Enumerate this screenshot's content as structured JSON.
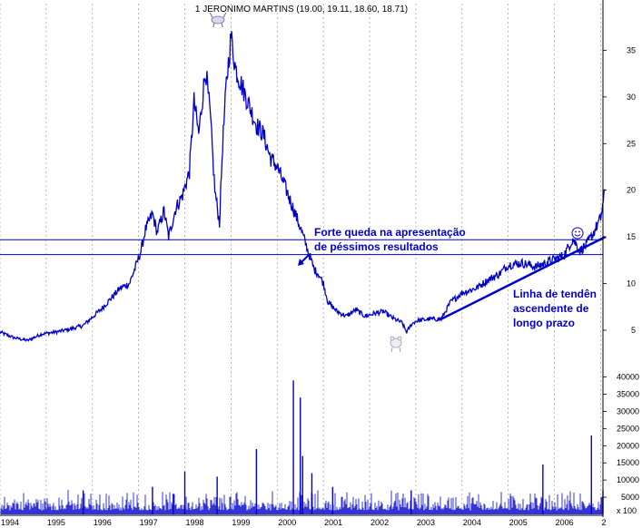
{
  "chart_data": {
    "type": "line",
    "title": "1 JERONIMO MARTINS (19.00, 19.11, 18.60, 18.71)",
    "colors": {
      "series": "#0000cc",
      "grid": "#9a9a9a",
      "background": "#ffffff"
    },
    "price_panel": {
      "y_ticks": [
        5,
        10,
        15,
        20,
        25,
        30,
        35
      ],
      "ylim": [
        1.5,
        40
      ],
      "series": [
        {
          "values": [
            [
              1994.0,
              4.8
            ],
            [
              1994.3,
              4.2
            ],
            [
              1994.6,
              3.9
            ],
            [
              1994.9,
              4.6
            ],
            [
              1995.2,
              4.8
            ],
            [
              1995.5,
              5.1
            ],
            [
              1995.8,
              5.5
            ],
            [
              1996.0,
              6.4
            ],
            [
              1996.2,
              7.3
            ],
            [
              1996.4,
              8.4
            ],
            [
              1996.6,
              9.5
            ],
            [
              1996.8,
              10.0
            ],
            [
              1996.95,
              12.0
            ],
            [
              1997.05,
              13.5
            ],
            [
              1997.15,
              15.8
            ],
            [
              1997.3,
              17.5
            ],
            [
              1997.4,
              15.5
            ],
            [
              1997.55,
              17.8
            ],
            [
              1997.65,
              15.0
            ],
            [
              1997.8,
              18.0
            ],
            [
              1997.95,
              19.5
            ],
            [
              1998.1,
              22.0
            ],
            [
              1998.2,
              29.5
            ],
            [
              1998.3,
              26.0
            ],
            [
              1998.45,
              33.0
            ],
            [
              1998.55,
              28.0
            ],
            [
              1998.65,
              20.0
            ],
            [
              1998.75,
              16.5
            ],
            [
              1998.82,
              25.0
            ],
            [
              1998.9,
              31.5
            ],
            [
              1999.0,
              36.5
            ],
            [
              1999.1,
              33.0
            ],
            [
              1999.25,
              31.0
            ],
            [
              1999.4,
              29.0
            ],
            [
              1999.55,
              27.0
            ],
            [
              1999.7,
              26.0
            ],
            [
              1999.85,
              23.5
            ],
            [
              2000.0,
              22.5
            ],
            [
              2000.2,
              20.0
            ],
            [
              2000.35,
              18.0
            ],
            [
              2000.5,
              16.0
            ],
            [
              2000.6,
              14.5
            ],
            [
              2000.7,
              13.0
            ],
            [
              2000.8,
              11.5
            ],
            [
              2000.9,
              11.0
            ],
            [
              2001.0,
              10.0
            ],
            [
              2001.1,
              8.0
            ],
            [
              2001.3,
              7.0
            ],
            [
              2001.5,
              6.5
            ],
            [
              2001.7,
              7.2
            ],
            [
              2001.9,
              6.5
            ],
            [
              2002.1,
              6.8
            ],
            [
              2002.3,
              7.0
            ],
            [
              2002.5,
              6.3
            ],
            [
              2002.7,
              5.8
            ],
            [
              2002.8,
              4.8
            ],
            [
              2002.9,
              5.6
            ],
            [
              2003.0,
              6.0
            ],
            [
              2003.3,
              6.2
            ],
            [
              2003.55,
              6.2
            ],
            [
              2003.75,
              8.0
            ],
            [
              2004.0,
              9.0
            ],
            [
              2004.3,
              9.5
            ],
            [
              2004.6,
              10.5
            ],
            [
              2004.8,
              11.0
            ],
            [
              2005.0,
              12.0
            ],
            [
              2005.3,
              12.2
            ],
            [
              2005.6,
              11.8
            ],
            [
              2005.9,
              12.4
            ],
            [
              2006.2,
              13.0
            ],
            [
              2006.4,
              14.8
            ],
            [
              2006.55,
              13.5
            ],
            [
              2006.7,
              14.2
            ],
            [
              2006.85,
              15.5
            ],
            [
              2007.0,
              17.0
            ],
            [
              2007.1,
              20.0
            ]
          ]
        }
      ]
    },
    "volume_panel": {
      "y_ticks": [
        5000,
        10000,
        15000,
        20000,
        25000,
        30000,
        35000,
        40000
      ],
      "ylim": [
        0,
        42000
      ],
      "spikes": [
        [
          1995.8,
          7000
        ],
        [
          1997.3,
          8000
        ],
        [
          1997.75,
          6000
        ],
        [
          1998.0,
          12500
        ],
        [
          1998.7,
          11000
        ],
        [
          1999.55,
          19000
        ],
        [
          2000.35,
          39000
        ],
        [
          2000.5,
          34000
        ],
        [
          2000.55,
          17000
        ],
        [
          2000.75,
          12000
        ],
        [
          2001.2,
          8000
        ],
        [
          2002.9,
          7000
        ],
        [
          2005.75,
          14500
        ],
        [
          2006.8,
          23000
        ],
        [
          2007.05,
          7000
        ]
      ],
      "scale_label": "x 100"
    },
    "x_labels": [
      "1994",
      "1995",
      "1996",
      "1997",
      "1998",
      "1999",
      "2000",
      "2001",
      "2002",
      "2003",
      "2004",
      "2005",
      "2006",
      "2"
    ],
    "horizontal_lines": [
      14.7,
      13.1
    ],
    "trendline": [
      [
        2003.55,
        6.2
      ],
      [
        2007.1,
        15.0
      ]
    ],
    "annotations": {
      "drop_text": [
        "Forte queda na apresentação",
        "de péssimos resultados"
      ],
      "trend_text": [
        "Linha de tendên",
        "ascendente de",
        "longo prazo"
      ]
    },
    "markers": {
      "top": "bull-icon",
      "bottom": "bear-icon",
      "end": "smiley-icon"
    }
  }
}
